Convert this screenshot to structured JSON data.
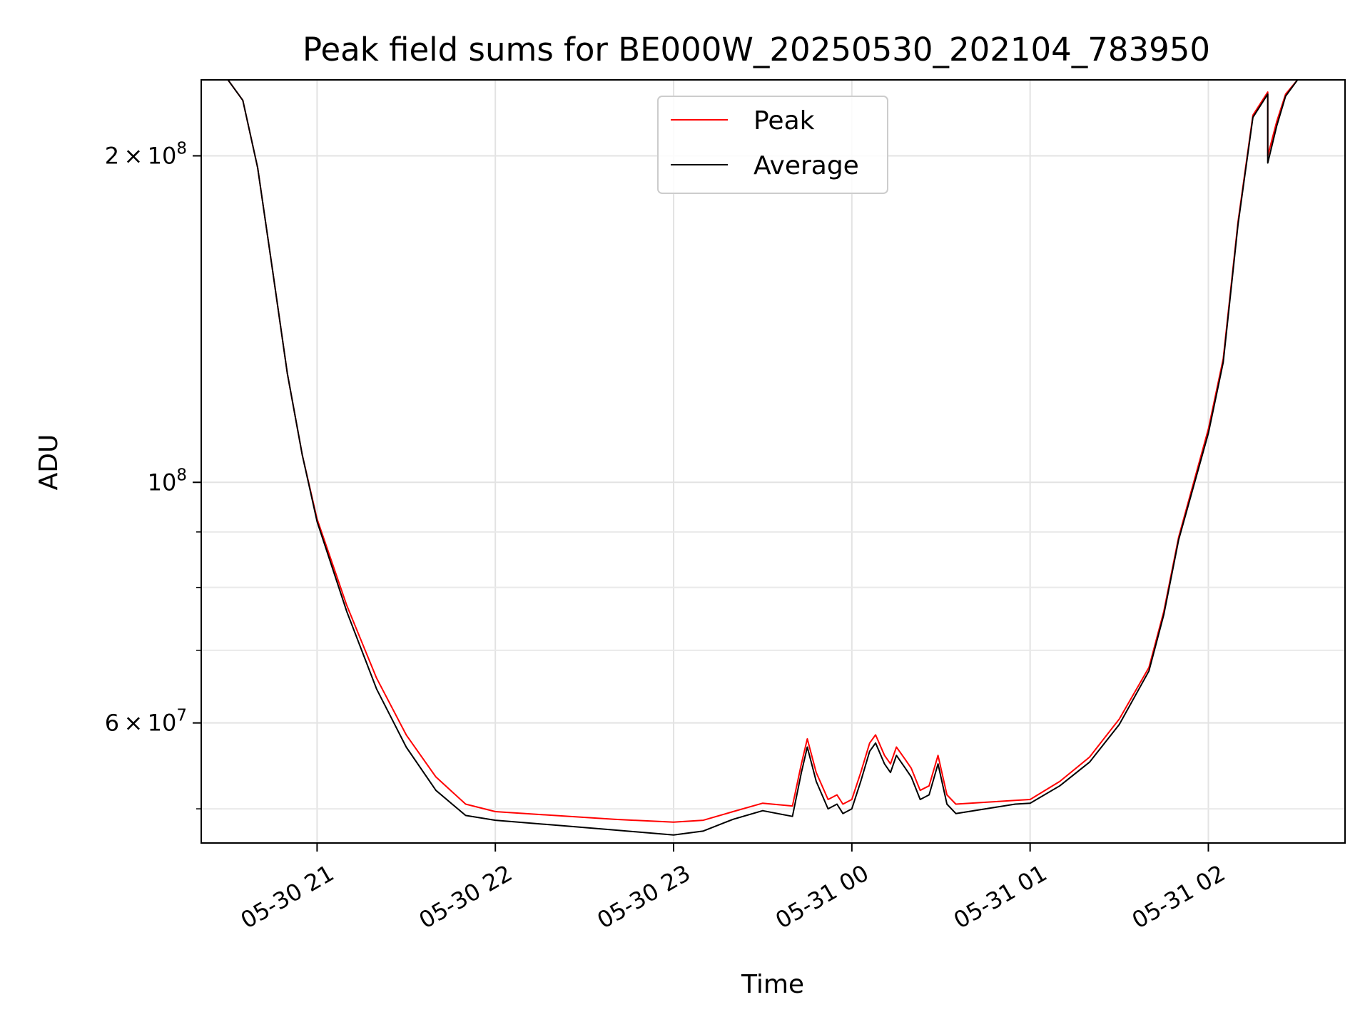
{
  "chart_data": {
    "type": "line",
    "title": "Peak field sums for BE000W_20250530_202104_783950",
    "xlabel": "Time",
    "ylabel": "ADU",
    "x_range": [
      "2025-05-30 20:21",
      "2025-05-31 02:46"
    ],
    "y_range": [
      46500000,
      235000000
    ],
    "yscale": "log",
    "grid": true,
    "legend_placement": "upper-center",
    "x_ticks": [
      {
        "value": "2025-05-30 21:00",
        "label": "05-30 21"
      },
      {
        "value": "2025-05-30 22:00",
        "label": "05-30 22"
      },
      {
        "value": "2025-05-30 23:00",
        "label": "05-30 23"
      },
      {
        "value": "2025-05-31 00:00",
        "label": "05-31 00"
      },
      {
        "value": "2025-05-31 01:00",
        "label": "05-31 01"
      },
      {
        "value": "2025-05-31 02:00",
        "label": "05-31 02"
      }
    ],
    "y_major_ticks": [
      {
        "value": 60000000,
        "mantissa": "6",
        "exponent": "7"
      },
      {
        "value": 100000000,
        "mantissa": "",
        "exponent": "8"
      },
      {
        "value": 200000000,
        "mantissa": "2",
        "exponent": "8"
      }
    ],
    "y_minor_ticks": [
      50000000,
      70000000,
      80000000,
      90000000
    ],
    "series": [
      {
        "name": "Peak",
        "color": "#ff0000",
        "points": [
          [
            "2025-05-30 20:21",
            235000000
          ],
          [
            "2025-05-30 20:30",
            235000000
          ],
          [
            "2025-05-30 20:35",
            225000000
          ],
          [
            "2025-05-30 20:40",
            195000000
          ],
          [
            "2025-05-30 20:45",
            157000000
          ],
          [
            "2025-05-30 20:50",
            126000000
          ],
          [
            "2025-05-30 20:55",
            106000000
          ],
          [
            "2025-05-30 21:00",
            92500000
          ],
          [
            "2025-05-30 21:10",
            77000000
          ],
          [
            "2025-05-30 21:20",
            66000000
          ],
          [
            "2025-05-30 21:30",
            58500000
          ],
          [
            "2025-05-30 21:40",
            53500000
          ],
          [
            "2025-05-30 21:50",
            50500000
          ],
          [
            "2025-05-30 22:00",
            49700000
          ],
          [
            "2025-05-30 22:20",
            49300000
          ],
          [
            "2025-05-30 22:40",
            48900000
          ],
          [
            "2025-05-30 23:00",
            48600000
          ],
          [
            "2025-05-30 23:10",
            48800000
          ],
          [
            "2025-05-30 23:20",
            49700000
          ],
          [
            "2025-05-30 23:30",
            50600000
          ],
          [
            "2025-05-30 23:40",
            50300000
          ],
          [
            "2025-05-30 23:43",
            55000000
          ],
          [
            "2025-05-30 23:45",
            58000000
          ],
          [
            "2025-05-30 23:48",
            54000000
          ],
          [
            "2025-05-30 23:52",
            51000000
          ],
          [
            "2025-05-30 23:55",
            51500000
          ],
          [
            "2025-05-30 23:57",
            50500000
          ],
          [
            "2025-05-31 00:00",
            51000000
          ],
          [
            "2025-05-31 00:03",
            54000000
          ],
          [
            "2025-05-31 00:06",
            57500000
          ],
          [
            "2025-05-31 00:08",
            58500000
          ],
          [
            "2025-05-31 00:11",
            56000000
          ],
          [
            "2025-05-31 00:13",
            55000000
          ],
          [
            "2025-05-31 00:15",
            57000000
          ],
          [
            "2025-05-31 00:18",
            55500000
          ],
          [
            "2025-05-31 00:20",
            54500000
          ],
          [
            "2025-05-31 00:23",
            52000000
          ],
          [
            "2025-05-31 00:26",
            52500000
          ],
          [
            "2025-05-31 00:29",
            56000000
          ],
          [
            "2025-05-31 00:32",
            51500000
          ],
          [
            "2025-05-31 00:35",
            50500000
          ],
          [
            "2025-05-31 00:45",
            50700000
          ],
          [
            "2025-05-31 00:55",
            50900000
          ],
          [
            "2025-05-31 01:00",
            51000000
          ],
          [
            "2025-05-31 01:10",
            53000000
          ],
          [
            "2025-05-31 01:20",
            55800000
          ],
          [
            "2025-05-31 01:30",
            60500000
          ],
          [
            "2025-05-31 01:40",
            67500000
          ],
          [
            "2025-05-31 01:45",
            76000000
          ],
          [
            "2025-05-31 01:50",
            89000000
          ],
          [
            "2025-05-31 02:00",
            112000000
          ],
          [
            "2025-05-31 02:05",
            130000000
          ],
          [
            "2025-05-31 02:10",
            174000000
          ],
          [
            "2025-05-31 02:15",
            218000000
          ],
          [
            "2025-05-31 02:20",
            229000000
          ],
          [
            "2025-05-31 02:20",
            200000000
          ],
          [
            "2025-05-31 02:23",
            215000000
          ],
          [
            "2025-05-31 02:26",
            228000000
          ],
          [
            "2025-05-31 02:30",
            235000000
          ],
          [
            "2025-05-31 02:46",
            235000000
          ]
        ]
      },
      {
        "name": "Average",
        "color": "#000000",
        "points": [
          [
            "2025-05-30 20:21",
            235000000
          ],
          [
            "2025-05-30 20:30",
            235000000
          ],
          [
            "2025-05-30 20:35",
            225000000
          ],
          [
            "2025-05-30 20:40",
            195000000
          ],
          [
            "2025-05-30 20:45",
            157000000
          ],
          [
            "2025-05-30 20:50",
            126000000
          ],
          [
            "2025-05-30 20:55",
            106000000
          ],
          [
            "2025-05-30 21:00",
            92000000
          ],
          [
            "2025-05-30 21:10",
            76000000
          ],
          [
            "2025-05-30 21:20",
            64500000
          ],
          [
            "2025-05-30 21:30",
            57000000
          ],
          [
            "2025-05-30 21:40",
            52000000
          ],
          [
            "2025-05-30 21:50",
            49300000
          ],
          [
            "2025-05-30 22:00",
            48800000
          ],
          [
            "2025-05-30 22:20",
            48300000
          ],
          [
            "2025-05-30 22:40",
            47800000
          ],
          [
            "2025-05-30 23:00",
            47300000
          ],
          [
            "2025-05-30 23:10",
            47700000
          ],
          [
            "2025-05-30 23:20",
            48900000
          ],
          [
            "2025-05-30 23:30",
            49800000
          ],
          [
            "2025-05-30 23:40",
            49200000
          ],
          [
            "2025-05-30 23:43",
            54000000
          ],
          [
            "2025-05-30 23:45",
            57000000
          ],
          [
            "2025-05-30 23:48",
            53000000
          ],
          [
            "2025-05-30 23:52",
            50000000
          ],
          [
            "2025-05-30 23:55",
            50500000
          ],
          [
            "2025-05-30 23:57",
            49500000
          ],
          [
            "2025-05-31 00:00",
            50000000
          ],
          [
            "2025-05-31 00:03",
            53000000
          ],
          [
            "2025-05-31 00:06",
            56500000
          ],
          [
            "2025-05-31 00:08",
            57500000
          ],
          [
            "2025-05-31 00:11",
            55000000
          ],
          [
            "2025-05-31 00:13",
            54000000
          ],
          [
            "2025-05-31 00:15",
            56000000
          ],
          [
            "2025-05-31 00:18",
            54500000
          ],
          [
            "2025-05-31 00:20",
            53500000
          ],
          [
            "2025-05-31 00:23",
            51000000
          ],
          [
            "2025-05-31 00:26",
            51500000
          ],
          [
            "2025-05-31 00:29",
            55000000
          ],
          [
            "2025-05-31 00:32",
            50500000
          ],
          [
            "2025-05-31 00:35",
            49500000
          ],
          [
            "2025-05-31 00:45",
            50000000
          ],
          [
            "2025-05-31 00:55",
            50500000
          ],
          [
            "2025-05-31 01:00",
            50600000
          ],
          [
            "2025-05-31 01:10",
            52500000
          ],
          [
            "2025-05-31 01:20",
            55200000
          ],
          [
            "2025-05-31 01:30",
            59800000
          ],
          [
            "2025-05-31 01:40",
            67000000
          ],
          [
            "2025-05-31 01:45",
            75500000
          ],
          [
            "2025-05-31 01:50",
            88500000
          ],
          [
            "2025-05-31 02:00",
            111000000
          ],
          [
            "2025-05-31 02:05",
            129000000
          ],
          [
            "2025-05-31 02:10",
            173000000
          ],
          [
            "2025-05-31 02:15",
            217000000
          ],
          [
            "2025-05-31 02:20",
            228000000
          ],
          [
            "2025-05-31 02:20",
            197000000
          ],
          [
            "2025-05-31 02:23",
            213000000
          ],
          [
            "2025-05-31 02:26",
            227000000
          ],
          [
            "2025-05-31 02:30",
            235000000
          ],
          [
            "2025-05-31 02:46",
            235000000
          ]
        ]
      }
    ]
  }
}
